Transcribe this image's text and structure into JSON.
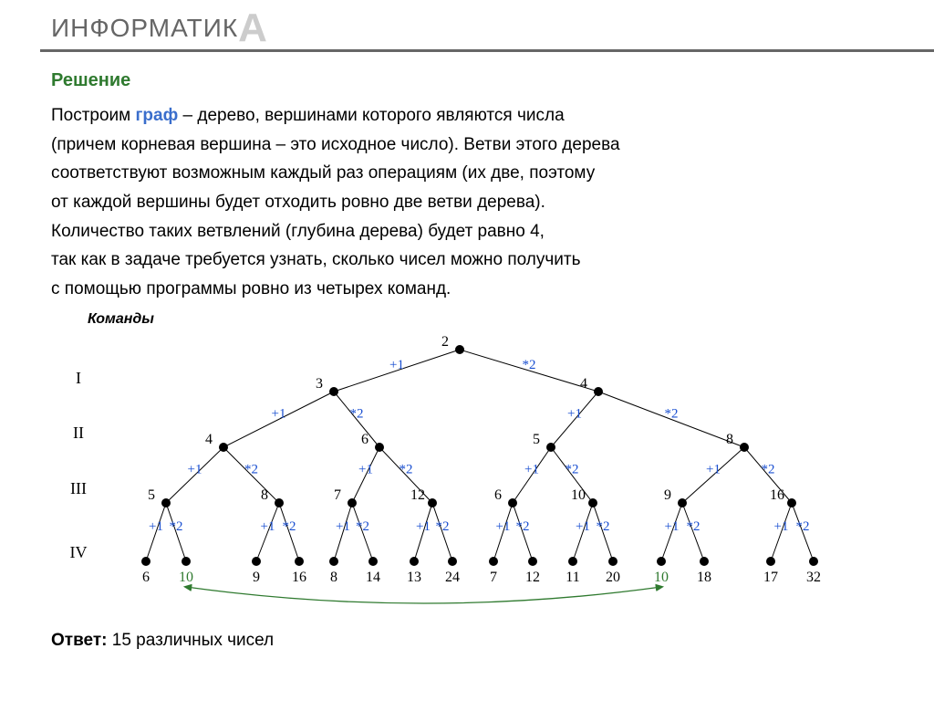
{
  "header": {
    "text": "ИНФОРМАТИК",
    "bigA": "А"
  },
  "title": "Решение",
  "paragraph": {
    "p1a": "Построим ",
    "graph": "граф",
    "p1b": " – дерево, вершинами которого являются числа",
    "p2": "(причем корневая вершина – это исходное число). Ветви этого дерева",
    "p3": "соответствуют возможным каждый раз операциям (их две, поэтому",
    "p4": "от каждой вершины будет отходить ровно две ветви дерева).",
    "p5": "Количество таких ветвлений (глубина дерева) будет равно 4,",
    "p6": "так как в задаче требуется узнать, сколько чисел можно получить",
    "p7": "с помощью программы ровно из четырех команд."
  },
  "commands_label": "Команды",
  "tree": {
    "op_left": "+1",
    "op_right": "*2",
    "levelY": {
      "L0": 18,
      "L1": 64,
      "L2": 125,
      "L3": 186,
      "L4": 250
    },
    "romanX": 30,
    "roman": [
      "I",
      "II",
      "III",
      "IV"
    ],
    "romanY": [
      55,
      115,
      176,
      246
    ],
    "rowX": {
      "L0": [
        448
      ],
      "L1": [
        310,
        600
      ],
      "L2": [
        189,
        360,
        548,
        760
      ],
      "L3": [
        126,
        250,
        330,
        418,
        506,
        594,
        692,
        812
      ],
      "L4": [
        104,
        148,
        225,
        272,
        310,
        353,
        398,
        440,
        485,
        528,
        572,
        616,
        669,
        716,
        789,
        836
      ]
    },
    "labels": {
      "L0": [
        "2"
      ],
      "L1": [
        "3",
        "4"
      ],
      "L2": [
        "4",
        "6",
        "5",
        "8"
      ],
      "L3": [
        "5",
        "8",
        "7",
        "12",
        "6",
        "10",
        "9",
        "16"
      ],
      "L4": [
        "6",
        "10",
        "9",
        "16",
        "8",
        "14",
        "13",
        "24",
        "7",
        "12",
        "11",
        "20",
        "10",
        "18",
        "17",
        "32"
      ]
    },
    "dup_idx": [
      1,
      12
    ],
    "node_label_color": "#000000",
    "dup_label_color": "#2f7a2f",
    "op_color": "#1a4fd1",
    "dot_radius": 5
  },
  "answer": {
    "label": "Ответ:",
    "text": "  15 различных чисел"
  }
}
